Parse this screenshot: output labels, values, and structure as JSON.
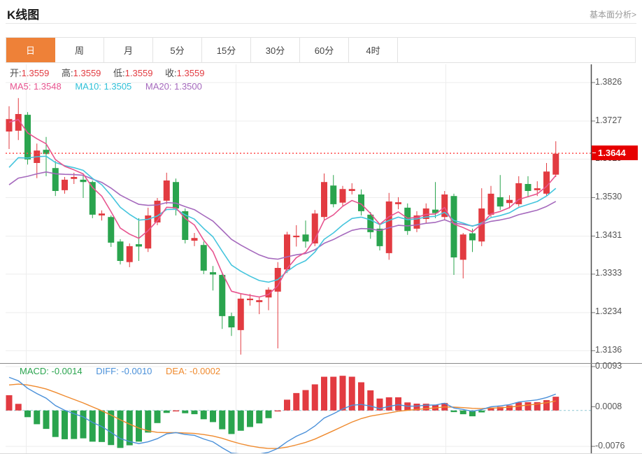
{
  "header": {
    "title": "K线图",
    "analysis_link": "基本面分析>"
  },
  "tabs": {
    "items": [
      {
        "label": "日",
        "selected": true
      },
      {
        "label": "周",
        "selected": false
      },
      {
        "label": "月",
        "selected": false
      },
      {
        "label": "5分",
        "selected": false
      },
      {
        "label": "15分",
        "selected": false
      },
      {
        "label": "30分",
        "selected": false
      },
      {
        "label": "60分",
        "selected": false
      },
      {
        "label": "4时",
        "selected": false
      }
    ]
  },
  "legend": {
    "ohlc": [
      {
        "label": "开:",
        "value": "1.3559"
      },
      {
        "label": "高:",
        "value": "1.3559"
      },
      {
        "label": "低:",
        "value": "1.3559"
      },
      {
        "label": "收:",
        "value": "1.3559"
      }
    ],
    "ma": [
      {
        "text": "MA5: 1.3548"
      },
      {
        "text": "MA10: 1.3505"
      },
      {
        "text": "MA20: 1.3500"
      }
    ]
  },
  "macd_legend": [
    {
      "text": "MACD: -0.0014"
    },
    {
      "text": "DIFF: -0.0010"
    },
    {
      "text": "DEA: -0.0002"
    }
  ],
  "axis": {
    "price_labels": [
      "1.3826",
      "1.3727",
      "1.3629",
      "1.3530",
      "1.3431",
      "1.3333",
      "1.3234",
      "1.3136"
    ],
    "macd_labels": [
      "0.0093",
      "0.0008",
      "-0.0076"
    ],
    "current_price_tag": "1.3644"
  },
  "colors": {
    "up": "#e23b41",
    "down": "#2aa44e",
    "ma5": "#e7548f",
    "ma10": "#45c5dd",
    "ma20": "#a569bd",
    "diff": "#4a90d9",
    "dea": "#ef8a2e",
    "tab_active": "#ee8138",
    "price_tag_bg": "#e60000",
    "dotted_line": "#ff4d4d",
    "grid": "#ededed",
    "axis_line": "#4a4a4a"
  },
  "chart_data": {
    "type": "candlestick",
    "description": "Daily FX K-line chart with MA5/MA10/MA20 overlays, current-price marker 1.3644, and MACD sub-chart",
    "price_axis": {
      "ticks": [
        1.3826,
        1.3727,
        1.3629,
        1.353,
        1.3431,
        1.3333,
        1.3234,
        1.3136
      ],
      "current_price": 1.3644
    },
    "macd_axis": {
      "ticks": [
        0.0093,
        0.0008,
        -0.0076
      ]
    },
    "indicators": {
      "ma_periods": [
        5,
        10,
        20
      ],
      "macd": {
        "macd": -0.0014,
        "diff": -0.001,
        "dea": -0.0002
      }
    },
    "legend_values": {
      "open": 1.3559,
      "high": 1.3559,
      "low": 1.3559,
      "close": 1.3559,
      "ma5": 1.3548,
      "ma10": 1.3505,
      "ma20": 1.35
    },
    "candles_format": "[open, high, low, close]",
    "candles": [
      [
        1.37,
        1.3765,
        1.3655,
        1.3732
      ],
      [
        1.3702,
        1.3786,
        1.3678,
        1.3745
      ],
      [
        1.3743,
        1.375,
        1.3615,
        1.3628
      ],
      [
        1.3619,
        1.3669,
        1.358,
        1.3651
      ],
      [
        1.3653,
        1.3686,
        1.3585,
        1.3642
      ],
      [
        1.3606,
        1.3624,
        1.3534,
        1.3547
      ],
      [
        1.3549,
        1.3583,
        1.354,
        1.3576
      ],
      [
        1.3578,
        1.3594,
        1.3565,
        1.3583
      ],
      [
        1.3576,
        1.3588,
        1.3529,
        1.357
      ],
      [
        1.357,
        1.3574,
        1.3477,
        1.3486
      ],
      [
        1.3484,
        1.3497,
        1.3471,
        1.3489
      ],
      [
        1.348,
        1.3484,
        1.3403,
        1.3414
      ],
      [
        1.3417,
        1.3423,
        1.3358,
        1.3367
      ],
      [
        1.3364,
        1.3412,
        1.3351,
        1.3405
      ],
      [
        1.341,
        1.3477,
        1.3367,
        1.3404
      ],
      [
        1.3399,
        1.3504,
        1.339,
        1.3484
      ],
      [
        1.3466,
        1.3529,
        1.3459,
        1.3522
      ],
      [
        1.3522,
        1.3594,
        1.3513,
        1.3574
      ],
      [
        1.357,
        1.3579,
        1.3484,
        1.3502
      ],
      [
        1.3495,
        1.3502,
        1.3412,
        1.3421
      ],
      [
        1.3419,
        1.3439,
        1.3405,
        1.3426
      ],
      [
        1.3408,
        1.3417,
        1.3333,
        1.3342
      ],
      [
        1.3338,
        1.3354,
        1.3291,
        1.3332
      ],
      [
        1.3331,
        1.3338,
        1.3192,
        1.3225
      ],
      [
        1.3225,
        1.3234,
        1.3174,
        1.3196
      ],
      [
        1.3189,
        1.3284,
        1.3126,
        1.327
      ],
      [
        1.3266,
        1.3282,
        1.3252,
        1.327
      ],
      [
        1.3261,
        1.3275,
        1.323,
        1.3266
      ],
      [
        1.3273,
        1.3299,
        1.324,
        1.3293
      ],
      [
        1.3288,
        1.3364,
        1.3142,
        1.3349
      ],
      [
        1.3345,
        1.3442,
        1.3336,
        1.3435
      ],
      [
        1.3428,
        1.3459,
        1.3404,
        1.3432
      ],
      [
        1.3435,
        1.3471,
        1.3401,
        1.3417
      ],
      [
        1.3412,
        1.3498,
        1.3405,
        1.3489
      ],
      [
        1.348,
        1.3592,
        1.3473,
        1.357
      ],
      [
        1.3561,
        1.3588,
        1.3505,
        1.3513
      ],
      [
        1.3517,
        1.356,
        1.3509,
        1.3552
      ],
      [
        1.3547,
        1.3567,
        1.3538,
        1.3552
      ],
      [
        1.3538,
        1.3551,
        1.3484,
        1.3495
      ],
      [
        1.3486,
        1.3493,
        1.3424,
        1.3441
      ],
      [
        1.345,
        1.3459,
        1.3394,
        1.3405
      ],
      [
        1.3387,
        1.3542,
        1.337,
        1.352
      ],
      [
        1.3513,
        1.3531,
        1.35,
        1.3518
      ],
      [
        1.3504,
        1.3515,
        1.3434,
        1.3444
      ],
      [
        1.345,
        1.3495,
        1.3441,
        1.3484
      ],
      [
        1.3475,
        1.3515,
        1.3464,
        1.3502
      ],
      [
        1.3499,
        1.357,
        1.3477,
        1.349
      ],
      [
        1.348,
        1.3547,
        1.3471,
        1.3538
      ],
      [
        1.3534,
        1.354,
        1.3331,
        1.3376
      ],
      [
        1.337,
        1.3439,
        1.3322,
        1.3435
      ],
      [
        1.3438,
        1.345,
        1.339,
        1.342
      ],
      [
        1.3417,
        1.3554,
        1.3405,
        1.3502
      ],
      [
        1.3486,
        1.356,
        1.348,
        1.354
      ],
      [
        1.3531,
        1.3588,
        1.3498,
        1.3507
      ],
      [
        1.3516,
        1.3536,
        1.3502,
        1.3524
      ],
      [
        1.3513,
        1.3585,
        1.3507,
        1.3567
      ],
      [
        1.3565,
        1.3585,
        1.3531,
        1.3547
      ],
      [
        1.3549,
        1.3572,
        1.3534,
        1.3554
      ],
      [
        1.354,
        1.3619,
        1.3534,
        1.3597
      ],
      [
        1.3589,
        1.3675,
        1.3583,
        1.3643
      ]
    ]
  }
}
